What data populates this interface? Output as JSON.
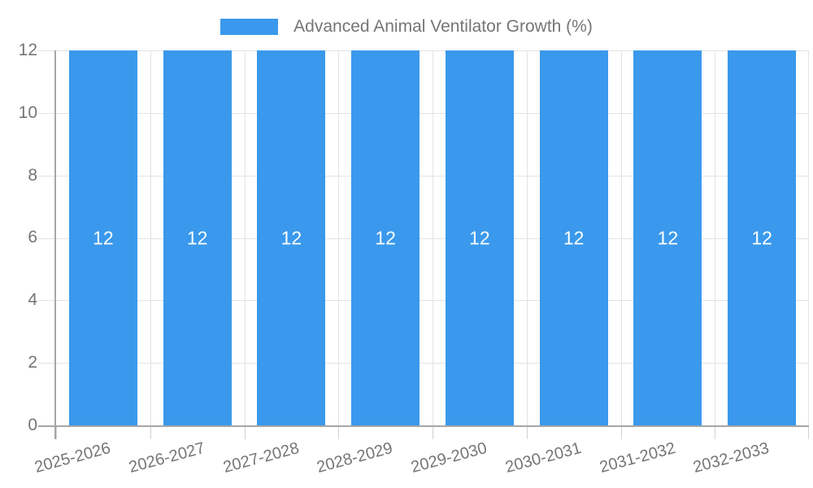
{
  "legend": {
    "label": "Advanced Animal Ventilator Growth (%)",
    "position": "top"
  },
  "colors": {
    "bar": "#3a99ec",
    "axis_line": "#a6a6a6",
    "gridline": "#e3e3e3",
    "tick_text": "#757575",
    "bar_label_text": "#ffffff"
  },
  "chart_data": {
    "type": "bar",
    "title": "Advanced Animal Ventilator Growth (%)",
    "categories": [
      "2025-2026",
      "2026-2027",
      "2027-2028",
      "2028-2029",
      "2029-2030",
      "2030-2031",
      "2031-2032",
      "2032-2033"
    ],
    "series": [
      {
        "name": "Advanced Animal Ventilator Growth (%)",
        "values": [
          12,
          12,
          12,
          12,
          12,
          12,
          12,
          12
        ]
      }
    ],
    "values": [
      12,
      12,
      12,
      12,
      12,
      12,
      12,
      12
    ],
    "bar_labels": [
      "12",
      "12",
      "12",
      "12",
      "12",
      "12",
      "12",
      "12"
    ],
    "xlabel": "",
    "ylabel": "",
    "ylim": [
      0,
      12
    ],
    "yticks": [
      0,
      2,
      4,
      6,
      8,
      10,
      12
    ],
    "ytick_labels_top_to_bottom": [
      "12",
      "10",
      "8",
      "6",
      "4",
      "2",
      "0"
    ],
    "grid": true,
    "legend_position": "top",
    "x_label_rotation_deg": -15
  }
}
